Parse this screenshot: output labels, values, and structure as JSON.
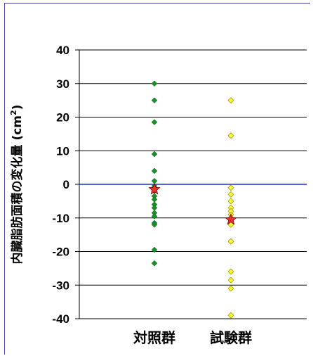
{
  "chart_data": {
    "type": "scatter",
    "ylabel": "内臓脂肪面積の変化量 (cm",
    "ylabel_sup": "2",
    "ylabel_close": ")",
    "ylim": [
      -40,
      40
    ],
    "yticks": [
      "40",
      "30",
      "20",
      "10",
      "0",
      "-10",
      "-20",
      "-30",
      "-40"
    ],
    "ytick_values": [
      40,
      30,
      20,
      10,
      0,
      -10,
      -20,
      -30,
      -40
    ],
    "grid": true,
    "categories": [
      "対照群",
      "試験群"
    ],
    "series": [
      {
        "color": "#1a8f2a",
        "marker": "diamond",
        "values": [
          30,
          25,
          18.5,
          9,
          4,
          1,
          -0.5,
          -2,
          -3.5,
          -4.5,
          -6,
          -7,
          -8.5,
          -9.5,
          -11.5,
          -12,
          -19.5,
          -23.5
        ]
      },
      {
        "color": "#ffff33",
        "marker": "diamond",
        "values": [
          25,
          14.5,
          -1,
          -3,
          -5,
          -7,
          -8,
          -9,
          -10,
          -10.5,
          -12,
          -17,
          -26,
          -28.5,
          -31,
          -39
        ]
      }
    ],
    "means": {
      "color": "#e83030",
      "marker": "star",
      "values": [
        -1.5,
        -10.5
      ]
    },
    "zero_line_color": "#1a2fd6"
  }
}
